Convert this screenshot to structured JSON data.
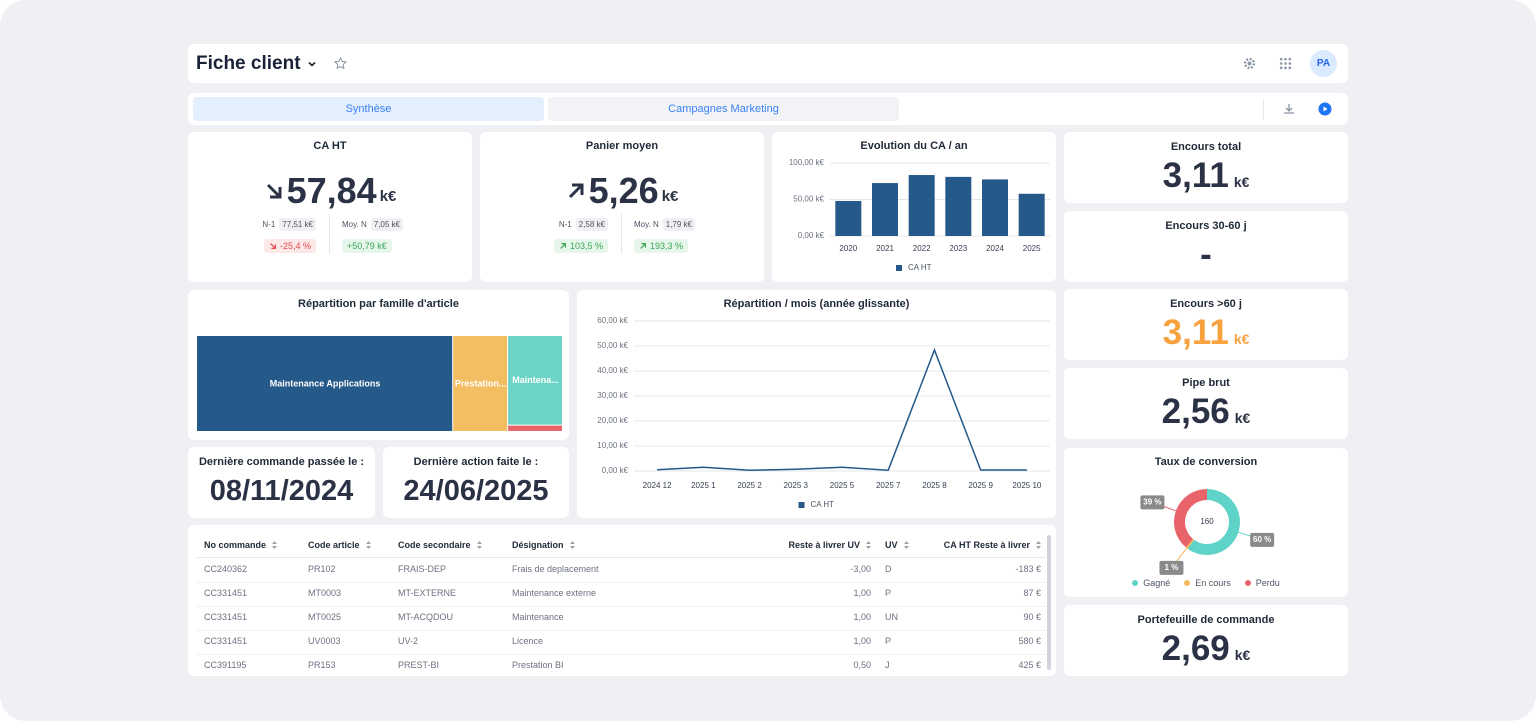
{
  "header": {
    "title": "Fiche client",
    "avatar": "PA"
  },
  "tabs": [
    "Synthèse",
    "Campagnes Marketing"
  ],
  "kpis": [
    {
      "title": "CA HT",
      "value": "57,84",
      "unit": "k€",
      "trend": "down",
      "n1_label": "N-1",
      "n1": "77,51 k€",
      "avg_label": "Moy. N",
      "avg": "7,05 k€",
      "n1_change": {
        "text": "-25,4 %",
        "trend": "down",
        "arrow": true
      },
      "avg_change": {
        "text": "+50,79 k€",
        "trend": "up",
        "arrow": false
      }
    },
    {
      "title": "Panier moyen",
      "value": "5,26",
      "unit": "k€",
      "trend": "up",
      "n1_label": "N-1",
      "n1": "2,58 k€",
      "avg_label": "Moy. N",
      "avg": "1,79 k€",
      "n1_change": {
        "text": "103,5 %",
        "trend": "up",
        "arrow": true
      },
      "avg_change": {
        "text": "193,3 %",
        "trend": "up",
        "arrow": true
      }
    }
  ],
  "side_cards": [
    {
      "title": "Encours total",
      "value": "3,11",
      "unit": "k€",
      "color": "#2b3245"
    },
    {
      "title": "Encours 30-60 j",
      "value": "-",
      "color": "#2b3245"
    },
    {
      "title": "Encours >60 j",
      "value": "3,11",
      "unit": "k€",
      "color": "#f7a23f"
    },
    {
      "title": "Pipe brut",
      "value": "2,56",
      "unit": "k€",
      "color": "#2b3245"
    },
    {
      "title": "Portefeuille de commande",
      "value": "2,69",
      "unit": "k€",
      "color": "#2b3245"
    }
  ],
  "dates": [
    {
      "title": "Dernière commande passée le :",
      "value": "08/11/2024"
    },
    {
      "title": "Dernière action faite le :",
      "value": "24/06/2025"
    }
  ],
  "table": {
    "columns": [
      "No commande",
      "Code article",
      "Code secondaire",
      "Désignation",
      "Reste à livrer UV",
      "UV",
      "CA HT Reste à livrer"
    ],
    "rows": [
      [
        "CC240362",
        "PR102",
        "FRAIS-DEP",
        "Frais de deplacement",
        "-3,00",
        "D",
        "-183 €"
      ],
      [
        "CC331451",
        "MT0003",
        "MT-EXTERNE",
        "Maintenance externe",
        "1,00",
        "P",
        "87 €"
      ],
      [
        "CC331451",
        "MT0025",
        "MT-ACQDOU",
        "Maintenance",
        "1,00",
        "UN",
        "90 €"
      ],
      [
        "CC331451",
        "UV0003",
        "UV-2",
        "Licence",
        "1,00",
        "P",
        "580 €"
      ],
      [
        "CC391195",
        "PR153",
        "PREST-BI",
        "Prestation BI",
        "0,50",
        "J",
        "425 €"
      ]
    ]
  },
  "chart_data": [
    {
      "type": "bar",
      "title": "Evolution du CA / an",
      "categories": [
        "2020",
        "2021",
        "2022",
        "2023",
        "2024",
        "2025"
      ],
      "series": [
        {
          "name": "CA HT",
          "color": "#24598a",
          "values": [
            48,
            72.5,
            83.5,
            81,
            77.51,
            57.84
          ]
        }
      ],
      "ylim": [
        0,
        100
      ],
      "yticks": [
        {
          "value": 0,
          "label": "0,00 k€"
        },
        {
          "value": 50,
          "label": "50,00 k€"
        },
        {
          "value": 100,
          "label": "100,00 k€"
        }
      ],
      "grid": true
    },
    {
      "type": "treemap",
      "title": "Répartition par famille d'article",
      "categories": [
        "Maintenance Applications",
        "Prestation...",
        "Maintena...",
        null
      ],
      "values": [
        70,
        15,
        14,
        1
      ],
      "colors": [
        "#24598a",
        "#f3bd62",
        "#6dd3c6",
        "#e8646b"
      ]
    },
    {
      "type": "line",
      "title": "Répartition / mois (année glissante)",
      "categories": [
        "2024 12",
        "2025 1",
        "2025 2",
        "2025 3",
        "2025 5",
        "2025 7",
        "2025 8",
        "2025 9",
        "2025 10"
      ],
      "series": [
        {
          "name": "CA HT",
          "color": "#24598a",
          "values": [
            0.5,
            1.5,
            0.3,
            0.7,
            1.5,
            0.3,
            48.4,
            0.4,
            0.4
          ]
        }
      ],
      "ylim": [
        0,
        60
      ],
      "yticks": [
        {
          "value": 0,
          "label": "0,00 k€"
        },
        {
          "value": 10,
          "label": "10,00 k€"
        },
        {
          "value": 20,
          "label": "20,00 k€"
        },
        {
          "value": 30,
          "label": "30,00 k€"
        },
        {
          "value": 40,
          "label": "40,00 k€"
        },
        {
          "value": 50,
          "label": "50,00 k€"
        },
        {
          "value": 60,
          "label": "60,00 k€"
        }
      ],
      "grid": true
    },
    {
      "type": "pie",
      "title": "Taux de conversion",
      "donut": true,
      "center_label": "160",
      "categories": [
        "Gagné",
        "En cours",
        "Perdu"
      ],
      "values": [
        60,
        1,
        39
      ],
      "value_labels": [
        "60 %",
        "1 %",
        "39 %"
      ],
      "colors": [
        "#5fd3c7",
        "#f5b85c",
        "#e9636b"
      ]
    }
  ]
}
